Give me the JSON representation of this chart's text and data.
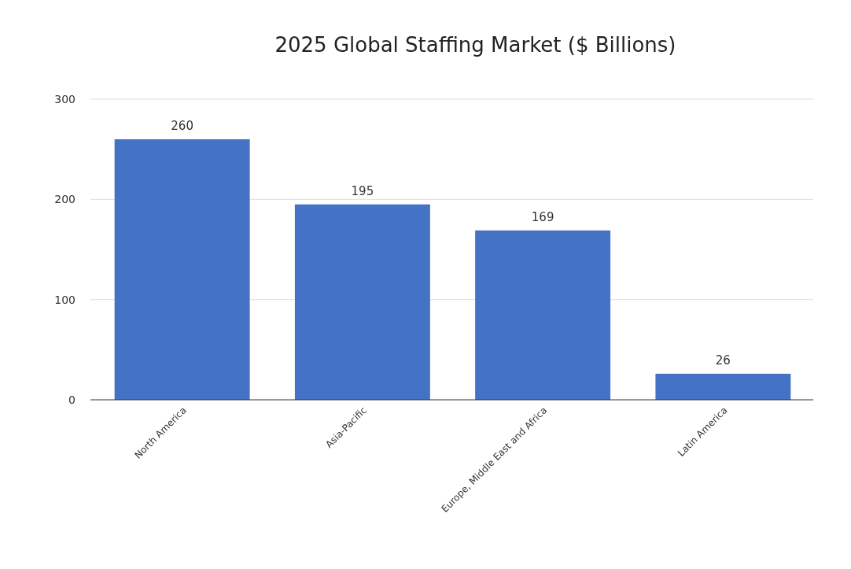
{
  "chart_data": {
    "type": "bar",
    "title": "2025 Global Staffing Market ($ Billions)",
    "categories": [
      "North America",
      "Asia-Pacific",
      "Europe, Middle East and Africa",
      "Latin America"
    ],
    "values": [
      260,
      195,
      169,
      26
    ],
    "color": "#4472c4",
    "ylim": [
      0,
      300
    ],
    "yticks": [
      0,
      100,
      200,
      300
    ],
    "grid": "y",
    "data_labels": true
  }
}
